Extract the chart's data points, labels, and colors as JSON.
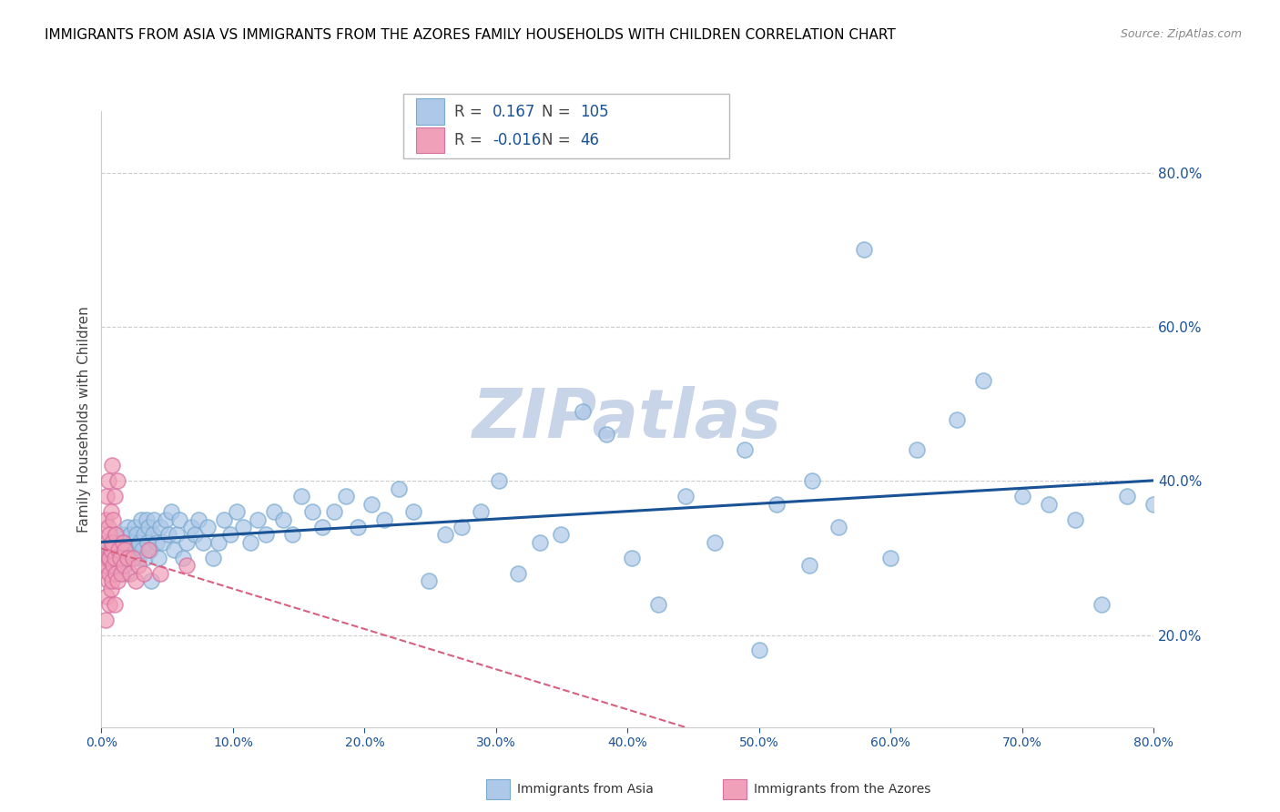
{
  "title": "IMMIGRANTS FROM ASIA VS IMMIGRANTS FROM THE AZORES FAMILY HOUSEHOLDS WITH CHILDREN CORRELATION CHART",
  "source": "Source: ZipAtlas.com",
  "ylabel": "Family Households with Children",
  "xlim": [
    0.0,
    0.8
  ],
  "ylim": [
    0.08,
    0.88
  ],
  "xtick_labels": [
    "0.0%",
    "10.0%",
    "20.0%",
    "30.0%",
    "40.0%",
    "50.0%",
    "60.0%",
    "70.0%",
    "80.0%"
  ],
  "xtick_vals": [
    0.0,
    0.1,
    0.2,
    0.3,
    0.4,
    0.5,
    0.6,
    0.7,
    0.8
  ],
  "ytick_labels": [
    "20.0%",
    "40.0%",
    "60.0%",
    "80.0%"
  ],
  "ytick_vals": [
    0.2,
    0.4,
    0.6,
    0.8
  ],
  "grid_color": "#cccccc",
  "watermark": "ZIPatlas",
  "watermark_color": "#c8d4e8",
  "series_asia": {
    "label": "Immigrants from Asia",
    "facecolor": "#adc8e8",
    "edgecolor": "#7aaad0",
    "R": 0.167,
    "N": 105,
    "line_color": "#1a5296",
    "line_style": "solid",
    "x": [
      0.005,
      0.007,
      0.008,
      0.009,
      0.01,
      0.011,
      0.012,
      0.013,
      0.014,
      0.015,
      0.016,
      0.017,
      0.018,
      0.019,
      0.02,
      0.021,
      0.022,
      0.023,
      0.024,
      0.025,
      0.026,
      0.027,
      0.028,
      0.029,
      0.03,
      0.031,
      0.032,
      0.033,
      0.034,
      0.035,
      0.036,
      0.037,
      0.038,
      0.039,
      0.04,
      0.042,
      0.043,
      0.045,
      0.047,
      0.049,
      0.051,
      0.053,
      0.055,
      0.057,
      0.059,
      0.062,
      0.065,
      0.068,
      0.071,
      0.074,
      0.077,
      0.081,
      0.085,
      0.089,
      0.093,
      0.098,
      0.103,
      0.108,
      0.113,
      0.119,
      0.125,
      0.131,
      0.138,
      0.145,
      0.152,
      0.16,
      0.168,
      0.177,
      0.186,
      0.195,
      0.205,
      0.215,
      0.226,
      0.237,
      0.249,
      0.261,
      0.274,
      0.288,
      0.302,
      0.317,
      0.333,
      0.349,
      0.366,
      0.384,
      0.403,
      0.423,
      0.444,
      0.466,
      0.489,
      0.5,
      0.513,
      0.538,
      0.54,
      0.56,
      0.58,
      0.6,
      0.62,
      0.65,
      0.67,
      0.7,
      0.72,
      0.74,
      0.76,
      0.78,
      0.8
    ],
    "y": [
      0.31,
      0.32,
      0.3,
      0.29,
      0.33,
      0.31,
      0.3,
      0.32,
      0.29,
      0.31,
      0.33,
      0.3,
      0.32,
      0.28,
      0.34,
      0.31,
      0.33,
      0.3,
      0.32,
      0.34,
      0.31,
      0.33,
      0.3,
      0.32,
      0.35,
      0.31,
      0.33,
      0.3,
      0.35,
      0.32,
      0.34,
      0.31,
      0.27,
      0.33,
      0.35,
      0.32,
      0.3,
      0.34,
      0.32,
      0.35,
      0.33,
      0.36,
      0.31,
      0.33,
      0.35,
      0.3,
      0.32,
      0.34,
      0.33,
      0.35,
      0.32,
      0.34,
      0.3,
      0.32,
      0.35,
      0.33,
      0.36,
      0.34,
      0.32,
      0.35,
      0.33,
      0.36,
      0.35,
      0.33,
      0.38,
      0.36,
      0.34,
      0.36,
      0.38,
      0.34,
      0.37,
      0.35,
      0.39,
      0.36,
      0.27,
      0.33,
      0.34,
      0.36,
      0.4,
      0.28,
      0.32,
      0.33,
      0.49,
      0.46,
      0.3,
      0.24,
      0.38,
      0.32,
      0.44,
      0.18,
      0.37,
      0.29,
      0.4,
      0.34,
      0.7,
      0.3,
      0.44,
      0.48,
      0.53,
      0.38,
      0.37,
      0.35,
      0.24,
      0.38,
      0.37
    ]
  },
  "series_azores": {
    "label": "Immigrants from the Azores",
    "facecolor": "#f0a0b8",
    "edgecolor": "#d870a0",
    "R": -0.016,
    "N": 46,
    "line_color": "#d86080",
    "line_style": "dashed",
    "x": [
      0.002,
      0.003,
      0.003,
      0.003,
      0.004,
      0.004,
      0.004,
      0.004,
      0.005,
      0.005,
      0.005,
      0.005,
      0.006,
      0.006,
      0.006,
      0.006,
      0.007,
      0.007,
      0.007,
      0.008,
      0.008,
      0.008,
      0.009,
      0.009,
      0.01,
      0.01,
      0.01,
      0.011,
      0.011,
      0.012,
      0.012,
      0.013,
      0.014,
      0.015,
      0.016,
      0.017,
      0.018,
      0.02,
      0.022,
      0.024,
      0.026,
      0.028,
      0.032,
      0.036,
      0.045,
      0.065
    ],
    "y": [
      0.29,
      0.22,
      0.3,
      0.35,
      0.25,
      0.29,
      0.32,
      0.38,
      0.27,
      0.3,
      0.34,
      0.4,
      0.24,
      0.28,
      0.33,
      0.3,
      0.26,
      0.31,
      0.36,
      0.27,
      0.32,
      0.42,
      0.29,
      0.35,
      0.24,
      0.3,
      0.38,
      0.28,
      0.33,
      0.27,
      0.4,
      0.31,
      0.3,
      0.28,
      0.32,
      0.29,
      0.31,
      0.3,
      0.28,
      0.3,
      0.27,
      0.29,
      0.28,
      0.31,
      0.28,
      0.29
    ]
  },
  "legend": {
    "R_asia": "0.167",
    "N_asia": "105",
    "R_azores": "-0.016",
    "N_azores": "46",
    "text_color_R": "#888888",
    "text_color_val": "#1a5296",
    "box_color_asia": "#adc8e8",
    "box_color_azores": "#f0a0b8",
    "box_edge_asia": "#7aaad0",
    "box_edge_azores": "#d870a0"
  },
  "title_fontsize": 11,
  "axis_label_color": "#1a5296",
  "tick_color": "#1a5296",
  "source_fontsize": 9,
  "bottom_legend_color": "#333333"
}
